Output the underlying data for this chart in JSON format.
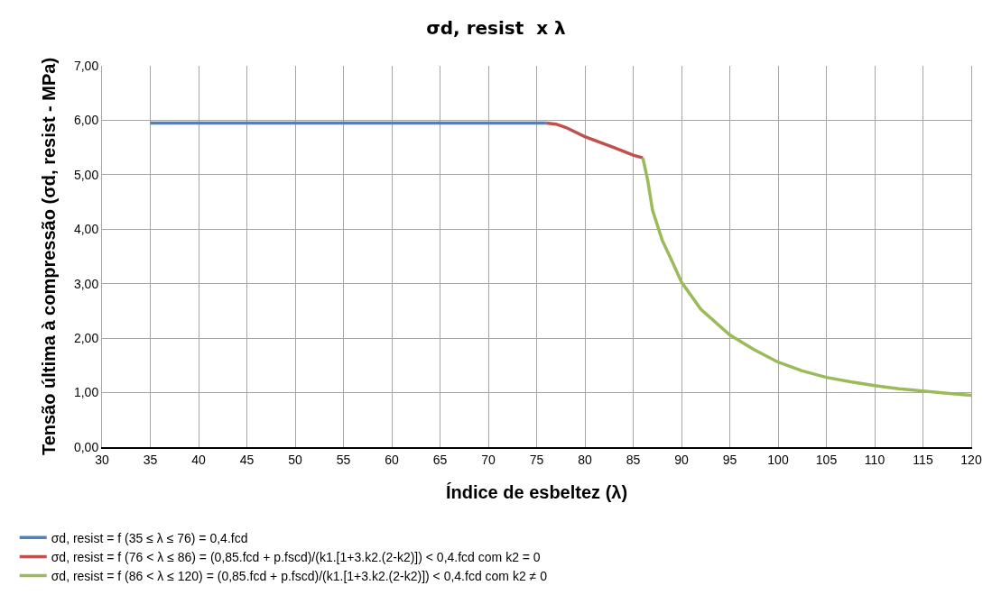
{
  "chart_data": {
    "type": "line",
    "title": "σd, resist  x λ",
    "xlabel": "Índice de esbeltez (λ)",
    "ylabel": "Tensão última à compressão (σd, resist - MPa)",
    "xlim": [
      30,
      120
    ],
    "xticks": [
      30,
      35,
      40,
      45,
      50,
      55,
      60,
      65,
      70,
      75,
      80,
      85,
      90,
      95,
      100,
      105,
      110,
      115,
      120
    ],
    "ylim": [
      0,
      7
    ],
    "yticks": [
      {
        "value": 0,
        "label": "0,00"
      },
      {
        "value": 1,
        "label": "1,00"
      },
      {
        "value": 2,
        "label": "2,00"
      },
      {
        "value": 3,
        "label": "3,00"
      },
      {
        "value": 4,
        "label": "4,00"
      },
      {
        "value": 5,
        "label": "5,00"
      },
      {
        "value": 6,
        "label": "6,00"
      },
      {
        "value": 7,
        "label": "7,00"
      }
    ],
    "grid": true,
    "legend": "bottom",
    "marker": "none",
    "line_style": "solid",
    "series": [
      {
        "name": "σd, resist = f (35 ≤ λ ≤ 76) = 0,4.fcd",
        "color": "#4f81bd",
        "x": [
          35,
          76
        ],
        "values": [
          5.95,
          5.95
        ]
      },
      {
        "name": "σd, resist = f (76 < λ ≤ 86) = (0,85.fcd + p.fscd)/(k1.[1+3.k2.(2-k2)]) < 0,4.fcd com k2 = 0",
        "color": "#c0504d",
        "x": [
          76,
          77,
          78,
          80,
          83,
          85,
          86
        ],
        "values": [
          5.95,
          5.93,
          5.87,
          5.7,
          5.5,
          5.36,
          5.31
        ]
      },
      {
        "name": "σd, resist = f (86 < λ ≤ 120) = (0,85.fcd + p.fscd)/(k1.[1+3.k2.(2-k2)]) < 0,4.fcd com k2 ≠ 0",
        "color": "#9bbb59",
        "x": [
          86,
          86.5,
          87,
          88,
          89,
          90,
          92,
          95,
          97.5,
          100,
          102.5,
          105,
          107.5,
          110,
          112.5,
          115,
          117.5,
          120
        ],
        "values": [
          5.31,
          4.9,
          4.35,
          3.8,
          3.42,
          3.03,
          2.53,
          2.06,
          1.79,
          1.56,
          1.4,
          1.28,
          1.2,
          1.13,
          1.07,
          1.03,
          0.99,
          0.95
        ]
      }
    ]
  }
}
